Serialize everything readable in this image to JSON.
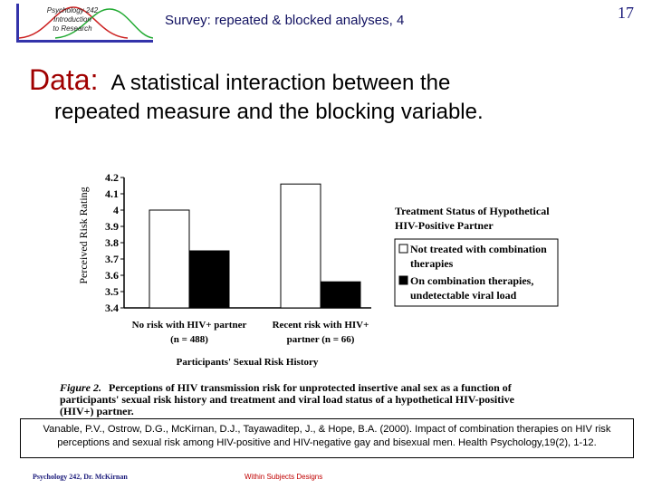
{
  "header": {
    "logo_lines": [
      "Psychology 242",
      "Introduction",
      "to Research"
    ],
    "title": "Survey: repeated & blocked analyses, 4",
    "slide_number": "17"
  },
  "heading": {
    "lead": "Data:",
    "line1": "A statistical interaction between the",
    "line2": "repeated measure and the blocking variable."
  },
  "chart_data": {
    "type": "bar",
    "ylabel": "Perceived Risk Rating",
    "xlabel": "Participants' Sexual Risk History",
    "ylim": [
      3.4,
      4.2
    ],
    "yticks": [
      "4.2",
      "4.1",
      "4",
      "3.9",
      "3.8",
      "3.7",
      "3.6",
      "3.5",
      "3.4"
    ],
    "categories": [
      {
        "line1": "No risk with HIV+ partner",
        "line2": "(n = 488)"
      },
      {
        "line1": "Recent risk with HIV+",
        "line2": "partner (n = 66)"
      }
    ],
    "series": [
      {
        "name": "Not treated with combination therapies",
        "values": [
          4.0,
          4.16
        ],
        "color": "#ffffff"
      },
      {
        "name": "On combination therapies, undetectable viral load",
        "values": [
          3.75,
          3.56
        ],
        "color": "#000000"
      }
    ],
    "legend": {
      "title_line1": "Treatment Status of Hypothetical",
      "title_line2": "HIV-Positive  Partner",
      "items": [
        {
          "line1": "Not treated with combination",
          "line2": "therapies"
        },
        {
          "line1": "On combination therapies,",
          "line2": "undetectable viral load"
        }
      ],
      "placement": "right"
    },
    "grid": false
  },
  "caption": {
    "figure_label": "Figure 2.",
    "line1": "Perceptions of HIV transmission risk for unprotected insertive anal sex as a function of",
    "line2": "participants' sexual risk history and treatment and viral load status of a hypothetical HIV-positive",
    "line3": "(HIV+) partner."
  },
  "citation": {
    "text": "Vanable, P.V., Ostrow, D.G., McKirnan, D.J., Tayawaditep, J., & Hope, B.A. (2000). Impact of combination therapies on HIV risk perceptions and sexual risk among HIV-positive and HIV-negative gay and bisexual men. Health Psychology,19(2), 1-12."
  },
  "footer": {
    "left": "Psychology 242, Dr. McKirnan",
    "middle": "Within Subjects Designs"
  }
}
